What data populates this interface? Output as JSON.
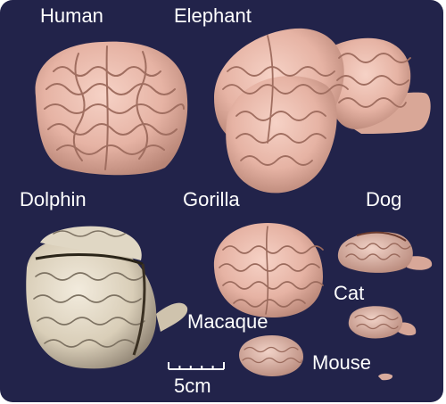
{
  "labels": {
    "human": "Human",
    "elephant": "Elephant",
    "dolphin": "Dolphin",
    "gorilla": "Gorilla",
    "dog": "Dog",
    "cat": "Cat",
    "macaque": "Macaque",
    "mouse": "Mouse"
  },
  "scale_bar": {
    "label": "5cm"
  },
  "colors": {
    "background": "#22234a",
    "label_text": "#ffffff",
    "brain_tissue": "#e9b7a8",
    "brain_shadow": "#b98676",
    "dolphin_tissue": "#dcd2bf"
  }
}
